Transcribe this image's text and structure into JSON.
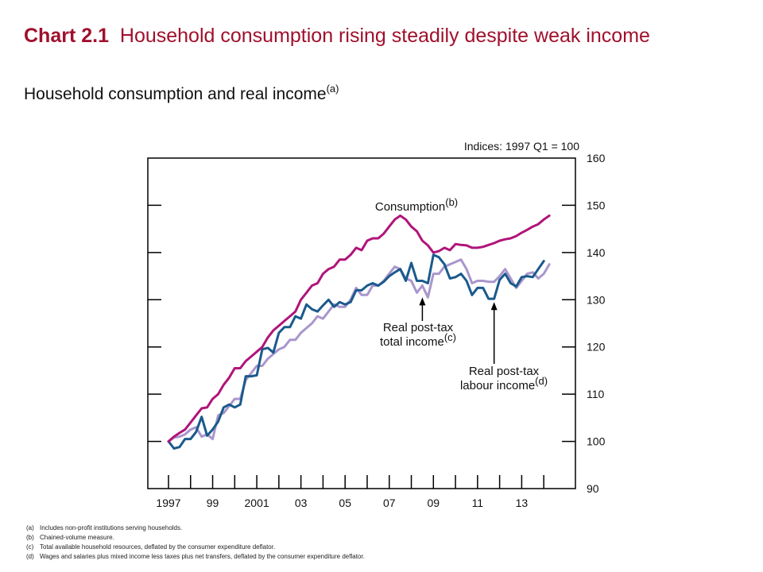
{
  "header": {
    "chart_number": "Chart 2.1",
    "title": "Household consumption rising steadily despite weak income",
    "subtitle": "Household consumption and real income",
    "subtitle_note": "(a)"
  },
  "colors": {
    "title": "#a0102c",
    "consumption": "#b0147a",
    "total_income": "#a996cc",
    "labour_income": "#1a5a8c"
  },
  "chart_data": {
    "type": "line",
    "title": "Household consumption and real income",
    "ylabel": "Indices: 1997 Q1 = 100",
    "ylim": [
      90,
      160
    ],
    "yticks": [
      "90",
      "100",
      "110",
      "120",
      "130",
      "140",
      "150",
      "160"
    ],
    "xlim": [
      1997,
      2014.75
    ],
    "xticks": [
      {
        "x": 1997,
        "label": "1997"
      },
      {
        "x": 1999,
        "label": "99"
      },
      {
        "x": 2001,
        "label": "2001"
      },
      {
        "x": 2003,
        "label": "03"
      },
      {
        "x": 2005,
        "label": "05"
      },
      {
        "x": 2007,
        "label": "07"
      },
      {
        "x": 2009,
        "label": "09"
      },
      {
        "x": 2011,
        "label": "11"
      },
      {
        "x": 2013,
        "label": "13"
      }
    ],
    "series": [
      {
        "id": "consumption",
        "name": "Consumption",
        "note": "(b)",
        "points": [
          [
            1997,
            100
          ],
          [
            1997.25,
            101
          ],
          [
            1997.5,
            101.8
          ],
          [
            1997.75,
            102.5
          ],
          [
            1998,
            104
          ],
          [
            1998.25,
            105.5
          ],
          [
            1998.5,
            107
          ],
          [
            1998.75,
            107.2
          ],
          [
            1999,
            109
          ],
          [
            1999.25,
            110
          ],
          [
            1999.5,
            112
          ],
          [
            1999.75,
            113.5
          ],
          [
            2000,
            115.5
          ],
          [
            2000.25,
            115.5
          ],
          [
            2000.5,
            117
          ],
          [
            2000.75,
            118
          ],
          [
            2001,
            119
          ],
          [
            2001.25,
            120
          ],
          [
            2001.5,
            122
          ],
          [
            2001.75,
            123.5
          ],
          [
            2002,
            124.5
          ],
          [
            2002.25,
            125.5
          ],
          [
            2002.5,
            126.5
          ],
          [
            2002.75,
            127.5
          ],
          [
            2003,
            130
          ],
          [
            2003.25,
            131.5
          ],
          [
            2003.5,
            133
          ],
          [
            2003.75,
            133.5
          ],
          [
            2004,
            135.5
          ],
          [
            2004.25,
            136.5
          ],
          [
            2004.5,
            137
          ],
          [
            2004.75,
            138.5
          ],
          [
            2005,
            138.5
          ],
          [
            2005.25,
            139.5
          ],
          [
            2005.5,
            141
          ],
          [
            2005.75,
            140.5
          ],
          [
            2006,
            142.5
          ],
          [
            2006.25,
            143
          ],
          [
            2006.5,
            143
          ],
          [
            2006.75,
            144
          ],
          [
            2007,
            145.5
          ],
          [
            2007.25,
            147
          ],
          [
            2007.5,
            147.8
          ],
          [
            2007.75,
            147
          ],
          [
            2008,
            145.5
          ],
          [
            2008.25,
            144.5
          ],
          [
            2008.5,
            142.5
          ],
          [
            2008.75,
            141.5
          ],
          [
            2009,
            140
          ],
          [
            2009.25,
            140.3
          ],
          [
            2009.5,
            141
          ],
          [
            2009.75,
            140.5
          ],
          [
            2010,
            141.8
          ],
          [
            2010.25,
            141.6
          ],
          [
            2010.5,
            141.5
          ],
          [
            2010.75,
            141
          ],
          [
            2011,
            141
          ],
          [
            2011.25,
            141.2
          ],
          [
            2011.5,
            141.6
          ],
          [
            2011.75,
            142
          ],
          [
            2012,
            142.5
          ],
          [
            2012.25,
            142.8
          ],
          [
            2012.5,
            143
          ],
          [
            2012.75,
            143.5
          ],
          [
            2013,
            144.2
          ],
          [
            2013.25,
            144.8
          ],
          [
            2013.5,
            145.5
          ],
          [
            2013.75,
            146
          ],
          [
            2014,
            147
          ],
          [
            2014.25,
            147.8
          ]
        ]
      },
      {
        "id": "total_income",
        "name": "Real post-tax total income",
        "note": "(c)",
        "points": [
          [
            1997,
            100
          ],
          [
            1997.25,
            100.8
          ],
          [
            1997.5,
            101
          ],
          [
            1997.75,
            101.5
          ],
          [
            1998,
            102.5
          ],
          [
            1998.25,
            103
          ],
          [
            1998.5,
            101
          ],
          [
            1998.75,
            101.5
          ],
          [
            1999,
            100.5
          ],
          [
            1999.25,
            105.5
          ],
          [
            1999.5,
            106
          ],
          [
            1999.75,
            107.5
          ],
          [
            2000,
            109
          ],
          [
            2000.25,
            109
          ],
          [
            2000.5,
            113
          ],
          [
            2000.75,
            114.5
          ],
          [
            2001,
            116
          ],
          [
            2001.25,
            116
          ],
          [
            2001.5,
            117.5
          ],
          [
            2001.75,
            118.5
          ],
          [
            2002,
            119.5
          ],
          [
            2002.25,
            120
          ],
          [
            2002.5,
            121.5
          ],
          [
            2002.75,
            121.5
          ],
          [
            2003,
            123
          ],
          [
            2003.25,
            124
          ],
          [
            2003.5,
            125
          ],
          [
            2003.75,
            126.5
          ],
          [
            2004,
            126
          ],
          [
            2004.25,
            127.5
          ],
          [
            2004.5,
            129
          ],
          [
            2004.75,
            128.5
          ],
          [
            2005,
            128.5
          ],
          [
            2005.25,
            130
          ],
          [
            2005.5,
            132.5
          ],
          [
            2005.75,
            131
          ],
          [
            2006,
            131
          ],
          [
            2006.25,
            133
          ],
          [
            2006.5,
            133
          ],
          [
            2006.75,
            134
          ],
          [
            2007,
            135.5
          ],
          [
            2007.25,
            137
          ],
          [
            2007.5,
            136.5
          ],
          [
            2007.75,
            134.5
          ],
          [
            2008,
            134
          ],
          [
            2008.25,
            131.5
          ],
          [
            2008.5,
            133
          ],
          [
            2008.75,
            130.5
          ],
          [
            2009,
            135.5
          ],
          [
            2009.25,
            135.5
          ],
          [
            2009.5,
            137
          ],
          [
            2009.75,
            137.5
          ],
          [
            2010,
            138
          ],
          [
            2010.25,
            138.5
          ],
          [
            2010.5,
            136.5
          ],
          [
            2010.75,
            133.5
          ],
          [
            2011,
            134
          ],
          [
            2011.25,
            134
          ],
          [
            2011.5,
            133.8
          ],
          [
            2011.75,
            133.8
          ],
          [
            2012,
            135
          ],
          [
            2012.25,
            136.5
          ],
          [
            2012.5,
            134.5
          ],
          [
            2012.75,
            132.5
          ],
          [
            2013,
            134
          ],
          [
            2013.25,
            135.5
          ],
          [
            2013.5,
            135.8
          ],
          [
            2013.75,
            134.5
          ],
          [
            2014,
            135.5
          ],
          [
            2014.25,
            137.5
          ]
        ]
      },
      {
        "id": "labour_income",
        "name": "Real post-tax labour income",
        "note": "(d)",
        "points": [
          [
            1997,
            100
          ],
          [
            1997.25,
            98.5
          ],
          [
            1997.5,
            98.8
          ],
          [
            1997.75,
            100.5
          ],
          [
            1998,
            100.5
          ],
          [
            1998.25,
            102
          ],
          [
            1998.5,
            105.2
          ],
          [
            1998.75,
            101.2
          ],
          [
            1999,
            102.5
          ],
          [
            1999.25,
            104.2
          ],
          [
            1999.5,
            107.2
          ],
          [
            1999.75,
            107.8
          ],
          [
            2000,
            107.2
          ],
          [
            2000.25,
            107.8
          ],
          [
            2000.5,
            113.8
          ],
          [
            2000.75,
            113.8
          ],
          [
            2001,
            114
          ],
          [
            2001.25,
            119.5
          ],
          [
            2001.5,
            119.8
          ],
          [
            2001.75,
            118.8
          ],
          [
            2002,
            123
          ],
          [
            2002.25,
            124.2
          ],
          [
            2002.5,
            124.2
          ],
          [
            2002.75,
            126.5
          ],
          [
            2003,
            126
          ],
          [
            2003.25,
            129
          ],
          [
            2003.5,
            128
          ],
          [
            2003.75,
            127.5
          ],
          [
            2004,
            128.8
          ],
          [
            2004.25,
            130
          ],
          [
            2004.5,
            128.5
          ],
          [
            2004.75,
            129.5
          ],
          [
            2005,
            129
          ],
          [
            2005.25,
            129.5
          ],
          [
            2005.5,
            132
          ],
          [
            2005.75,
            132
          ],
          [
            2006,
            133
          ],
          [
            2006.25,
            133.5
          ],
          [
            2006.5,
            133
          ],
          [
            2006.75,
            133.8
          ],
          [
            2007,
            135
          ],
          [
            2007.25,
            135.8
          ],
          [
            2007.5,
            136.5
          ],
          [
            2007.75,
            134
          ],
          [
            2008,
            137.8
          ],
          [
            2008.25,
            134
          ],
          [
            2008.5,
            134
          ],
          [
            2008.75,
            133.5
          ],
          [
            2009,
            139.5
          ],
          [
            2009.25,
            139
          ],
          [
            2009.5,
            137.5
          ],
          [
            2009.75,
            134.5
          ],
          [
            2010,
            134.8
          ],
          [
            2010.25,
            135.5
          ],
          [
            2010.5,
            134
          ],
          [
            2010.75,
            131
          ],
          [
            2011,
            132.5
          ],
          [
            2011.25,
            132.5
          ],
          [
            2011.5,
            130.2
          ],
          [
            2011.75,
            130.2
          ],
          [
            2012,
            134.2
          ],
          [
            2012.25,
            135.5
          ],
          [
            2012.5,
            133.5
          ],
          [
            2012.75,
            132.8
          ],
          [
            2013,
            134.8
          ],
          [
            2013.25,
            135
          ],
          [
            2013.5,
            134.8
          ],
          [
            2013.75,
            136.5
          ],
          [
            2014,
            138.2
          ]
        ]
      }
    ],
    "annotations": [
      {
        "series": "consumption",
        "lines": [
          "Consumption"
        ],
        "note": "(b)",
        "arrow": false
      },
      {
        "series": "total_income",
        "lines": [
          "Real post-tax",
          "total income"
        ],
        "note": "(c)",
        "arrow": true,
        "arrow_target": [
          2008.5,
          131
        ]
      },
      {
        "series": "labour_income",
        "lines": [
          "Real post-tax",
          "labour income"
        ],
        "note": "(d)",
        "arrow": true,
        "arrow_target": [
          2011.75,
          130
        ]
      }
    ]
  },
  "footnotes": [
    {
      "label": "(a)",
      "text": "Includes non-profit institutions serving households."
    },
    {
      "label": "(b)",
      "text": "Chained-volume measure."
    },
    {
      "label": "(c)",
      "text": "Total available household resources, deflated by the consumer expenditure deflator."
    },
    {
      "label": "(d)",
      "text": "Wages and salaries plus mixed income less taxes plus net transfers, deflated by the consumer expenditure deflator."
    }
  ]
}
